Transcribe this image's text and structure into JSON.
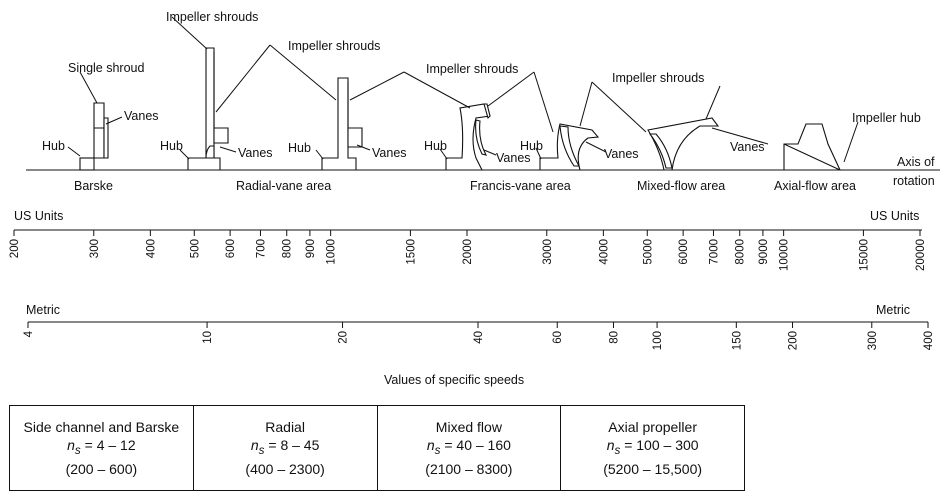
{
  "callouts": {
    "single_shroud": "Single shroud",
    "impeller_shrouds": "Impeller shrouds",
    "vanes": "Vanes",
    "hub": "Hub",
    "impeller_hub": "Impeller hub",
    "axis_of_rotation_1": "Axis of",
    "axis_of_rotation_2": "rotation"
  },
  "areas": {
    "barske": "Barske",
    "radial_vane": "Radial-vane area",
    "francis_vane": "Francis-vane area",
    "mixed_flow": "Mixed-flow area",
    "axial_flow": "Axial-flow area"
  },
  "us_scale": {
    "label_left": "US Units",
    "label_right": "US Units",
    "ticks": [
      "200",
      "300",
      "400",
      "500",
      "600",
      "700",
      "800",
      "900",
      "1000",
      "1500",
      "2000",
      "3000",
      "4000",
      "5000",
      "6000",
      "7000",
      "8000",
      "9000",
      "10000",
      "15000",
      "20000"
    ]
  },
  "metric_scale": {
    "label_left": "Metric",
    "label_right": "Metric",
    "ticks": [
      "4",
      "10",
      "20",
      "40",
      "60",
      "80",
      "100",
      "150",
      "200",
      "300",
      "400"
    ]
  },
  "scale_caption": "Values of specific speeds",
  "table": [
    {
      "title": "Side channel and Barske",
      "ns_symbol": "n",
      "ns_sub": "s",
      "ns_range": " = 4 – 12",
      "us_range": "(200 – 600)"
    },
    {
      "title": "Radial",
      "ns_symbol": "n",
      "ns_sub": "s",
      "ns_range": " = 8 – 45",
      "us_range": "(400 – 2300)"
    },
    {
      "title": "Mixed flow",
      "ns_symbol": "n",
      "ns_sub": "s",
      "ns_range": " = 40 – 160",
      "us_range": "(2100 – 8300)"
    },
    {
      "title": "Axial propeller",
      "ns_symbol": "n",
      "ns_sub": "s",
      "ns_range": " = 100 – 300",
      "us_range": "(5200 – 15,500)"
    }
  ]
}
